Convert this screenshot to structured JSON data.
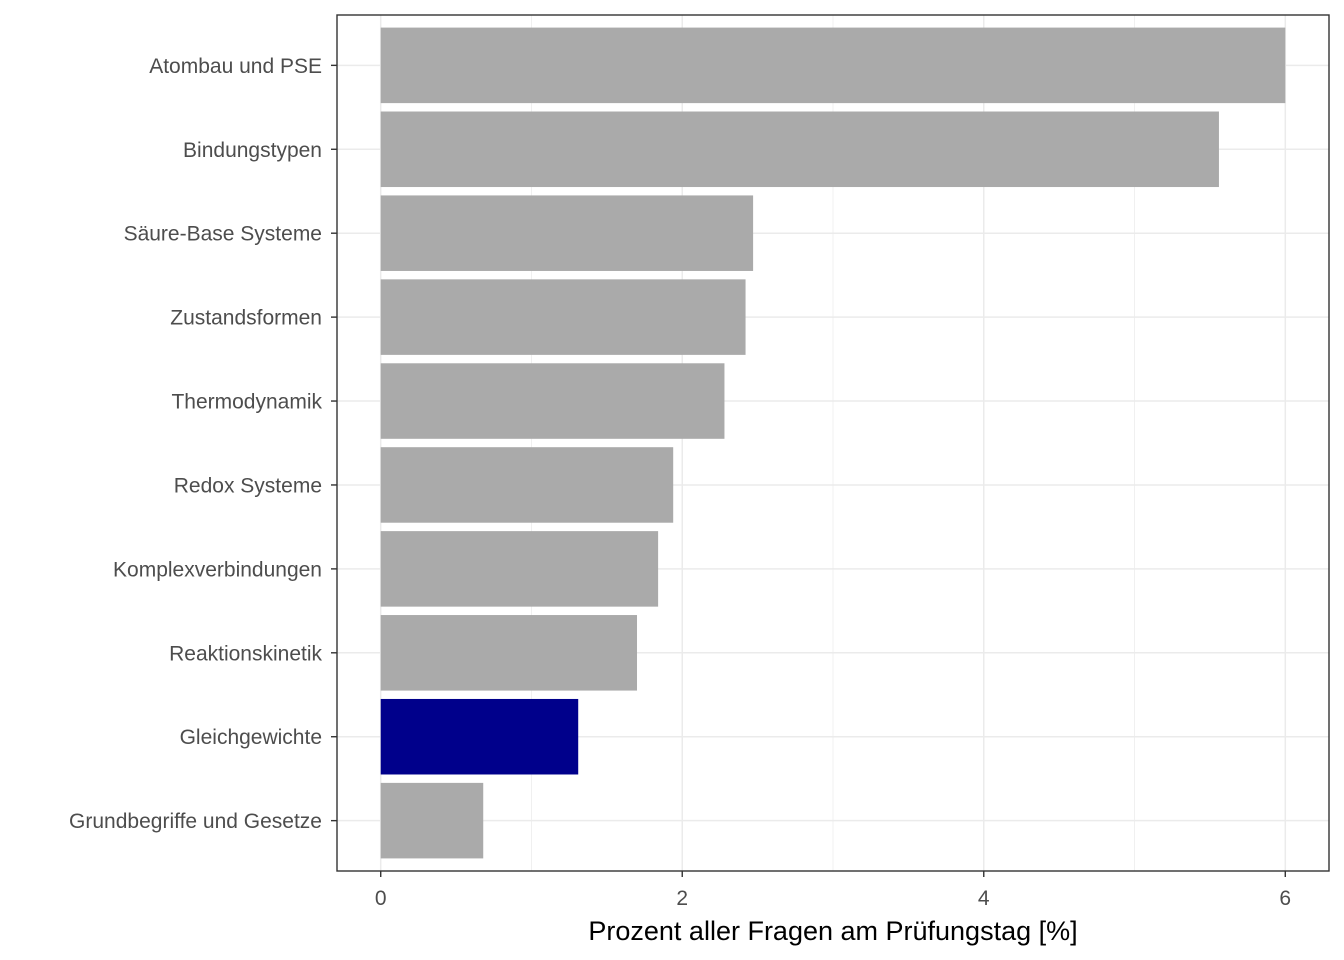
{
  "chart_data": {
    "type": "bar",
    "orientation": "horizontal",
    "categories": [
      "Atombau und PSE",
      "Bindungstypen",
      "Säure-Base Systeme",
      "Zustandsformen",
      "Thermodynamik",
      "Redox Systeme",
      "Komplexverbindungen",
      "Reaktionskinetik",
      "Gleichgewichte",
      "Grundbegriffe und Gesetze"
    ],
    "values": [
      6.0,
      5.56,
      2.47,
      2.42,
      2.28,
      1.94,
      1.84,
      1.7,
      1.31,
      0.68
    ],
    "highlight": "Gleichgewichte",
    "colors": {
      "default": "#aaaaaa",
      "highlight": "#00008b"
    },
    "xlabel": "Prozent aller Fragen am Prüfungstag [%]",
    "xlim": [
      -0.29,
      6.29
    ],
    "xticks": [
      0,
      2,
      4,
      6
    ],
    "grid": true
  }
}
